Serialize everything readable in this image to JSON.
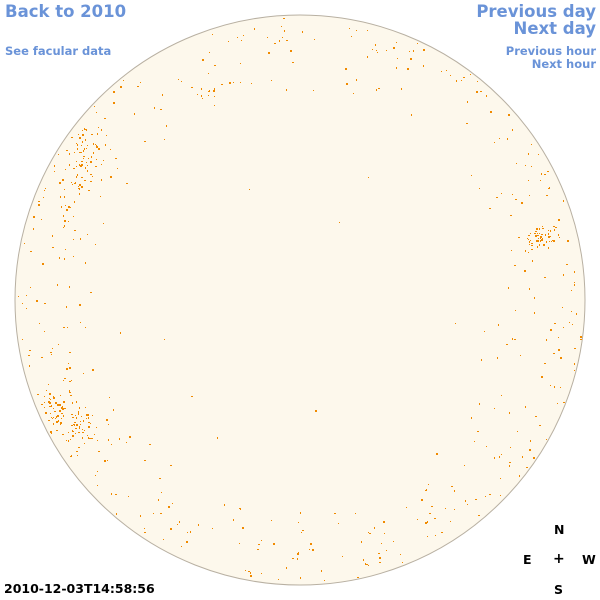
{
  "nav": {
    "back": "Back to 2010",
    "facular": "See facular data",
    "prev_day": "Previous day",
    "next_day": "Next day",
    "prev_hour": "Previous hour",
    "next_hour": "Next hour"
  },
  "compass": {
    "north": "N",
    "east": "E",
    "center": "+",
    "west": "W",
    "south": "S"
  },
  "timestamp": "2010-12-03T14:58:56",
  "colors": {
    "link": "#6a93d8",
    "disk_fill": "#fdf8ec",
    "disk_outline": "#b8b0a2",
    "spot": "#f08a00"
  }
}
